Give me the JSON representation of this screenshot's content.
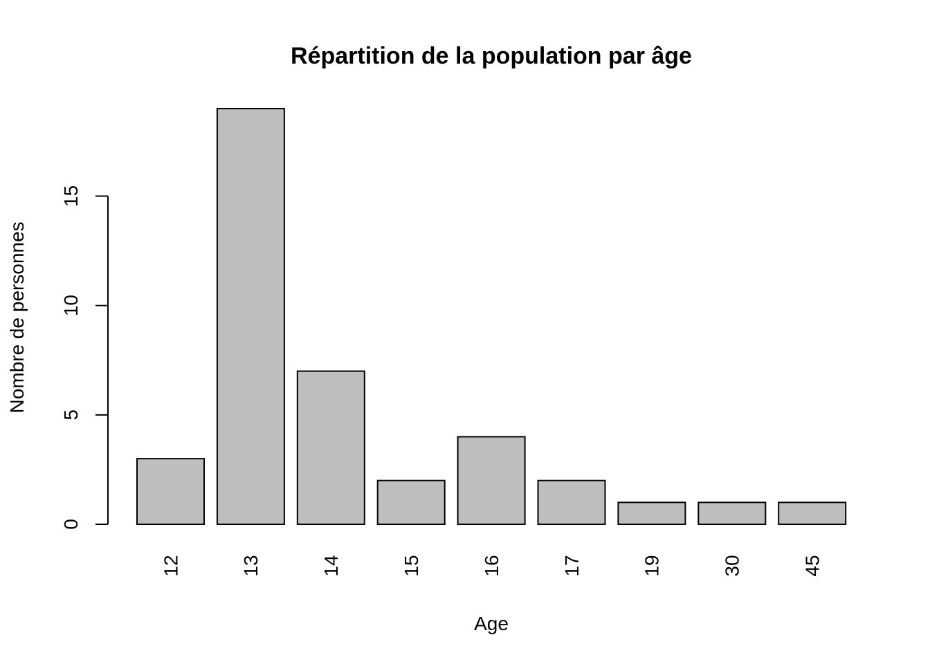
{
  "chart_data": {
    "type": "bar",
    "title": "Répartition de la population par âge",
    "xlabel": "Age",
    "ylabel": "Nombre de personnes",
    "categories": [
      "12",
      "13",
      "14",
      "15",
      "16",
      "17",
      "19",
      "30",
      "45"
    ],
    "values": [
      3,
      19,
      7,
      2,
      4,
      2,
      1,
      1,
      1
    ],
    "ylim": [
      0,
      19
    ],
    "yticks": [
      0,
      5,
      10,
      15
    ],
    "bar_color": "#bebebe",
    "grid": false,
    "x_tick_rotation": "vertical"
  }
}
